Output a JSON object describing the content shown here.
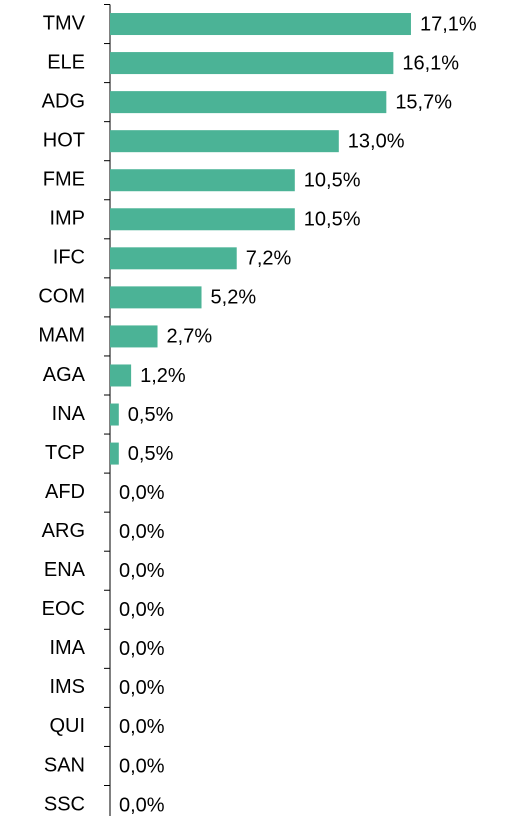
{
  "chart_data": {
    "type": "bar",
    "orientation": "horizontal",
    "categories": [
      "TMV",
      "ELE",
      "ADG",
      "HOT",
      "FME",
      "IMP",
      "IFC",
      "COM",
      "MAM",
      "AGA",
      "INA",
      "TCP",
      "AFD",
      "ARG",
      "ENA",
      "EOC",
      "IMA",
      "IMS",
      "QUI",
      "SAN",
      "SSC"
    ],
    "values": [
      17.1,
      16.1,
      15.7,
      13.0,
      10.5,
      10.5,
      7.2,
      5.2,
      2.7,
      1.2,
      0.5,
      0.5,
      0,
      0,
      0,
      0,
      0,
      0,
      0,
      0,
      0
    ],
    "value_labels": [
      "17,1%",
      "16,1%",
      "15,7%",
      "13,0%",
      "10,5%",
      "10,5%",
      "7,2%",
      "5,2%",
      "2,7%",
      "1,2%",
      "0,5%",
      "0,5%",
      "0,0%",
      "0,0%",
      "0,0%",
      "0,0%",
      "0,0%",
      "0,0%",
      "0,0%",
      "0,0%",
      "0,0%"
    ],
    "color": "#4bb396",
    "xlim": [
      0,
      20
    ]
  }
}
